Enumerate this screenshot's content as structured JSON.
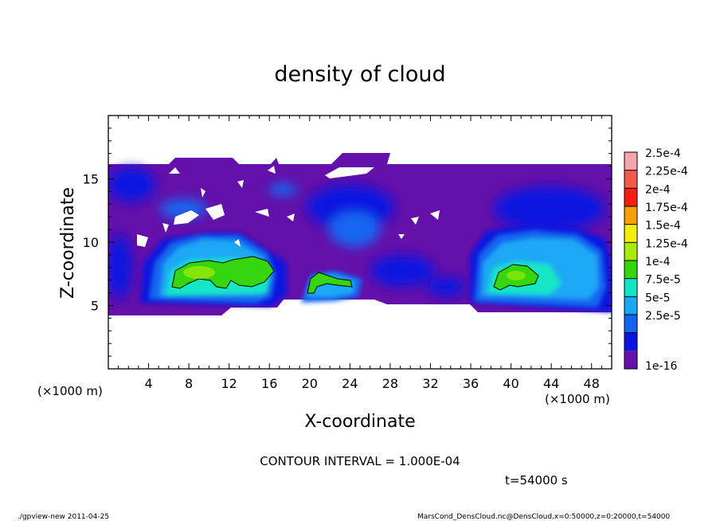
{
  "chart_data": {
    "type": "heatmap",
    "title": "density of cloud",
    "xlabel": "X-coordinate",
    "ylabel": "Z-coordinate",
    "x_unit_left": "(×1000 m)",
    "x_unit_right": "(×1000 m)",
    "xlim": [
      0,
      50
    ],
    "ylim": [
      0,
      20
    ],
    "x_ticks": [
      "4",
      "8",
      "12",
      "16",
      "20",
      "24",
      "28",
      "32",
      "36",
      "40",
      "44",
      "48"
    ],
    "y_ticks": [
      "5",
      "10",
      "15"
    ],
    "contour_interval_text": "CONTOUR INTERVAL = 1.000E-04",
    "time_text": "t=54000 s",
    "footer_left": "./gpview-new  2011-04-25",
    "footer_right": "MarsCond_DensCloud.nc@DensCloud,x=0:50000,z=0:20000,t=54000",
    "colorbar": {
      "labels": [
        "2.5e-4",
        "2.25e-4",
        "2e-4",
        "1.75e-4",
        "1.5e-4",
        "1.25e-4",
        "1e-4",
        "7.5e-5",
        "5e-5",
        "2.5e-5",
        "1e-16"
      ],
      "colors": [
        "#f4a6ae",
        "#f25a4e",
        "#f61e12",
        "#f7a008",
        "#f4ee0a",
        "#a8ec06",
        "#36d60e",
        "#12e6c6",
        "#1aa8f4",
        "#1466f0",
        "#0a14e0",
        "#6410aa"
      ]
    },
    "cloud_layer_z": [
      4.5,
      16.2
    ],
    "regions": [
      {
        "level": "1e-16",
        "x": [
          0,
          50
        ],
        "z": [
          4.5,
          16.2
        ]
      },
      {
        "level": "2.5e-5",
        "x": [
          0,
          4
        ],
        "z": [
          12.5,
          16
        ]
      },
      {
        "level": "2.5e-5",
        "x": [
          20,
          30
        ],
        "z": [
          11.5,
          15
        ]
      },
      {
        "level": "2.5e-5",
        "x": [
          37,
          48
        ],
        "z": [
          11.5,
          15
        ]
      },
      {
        "level": "5e-5",
        "x": [
          5,
          17
        ],
        "z": [
          5,
          11
        ]
      },
      {
        "level": "5e-5",
        "x": [
          36,
          50
        ],
        "z": [
          5,
          12
        ]
      },
      {
        "level": "7.5e-5",
        "x": [
          6,
          16
        ],
        "z": [
          5.5,
          10
        ]
      },
      {
        "level": "7.5e-5",
        "x": [
          37,
          49
        ],
        "z": [
          5.5,
          10
        ]
      },
      {
        "level": "1e-4",
        "x": [
          6.5,
          16.5
        ],
        "z": [
          6.3,
          8.5
        ]
      },
      {
        "level": "1e-4",
        "x": [
          19.5,
          24
        ],
        "z": [
          6.4,
          7.8
        ]
      },
      {
        "level": "1e-4",
        "x": [
          38,
          43
        ],
        "z": [
          6.5,
          8
        ]
      },
      {
        "level": "1.25e-4",
        "x": [
          8,
          11
        ],
        "z": [
          7,
          8.2
        ]
      }
    ]
  }
}
